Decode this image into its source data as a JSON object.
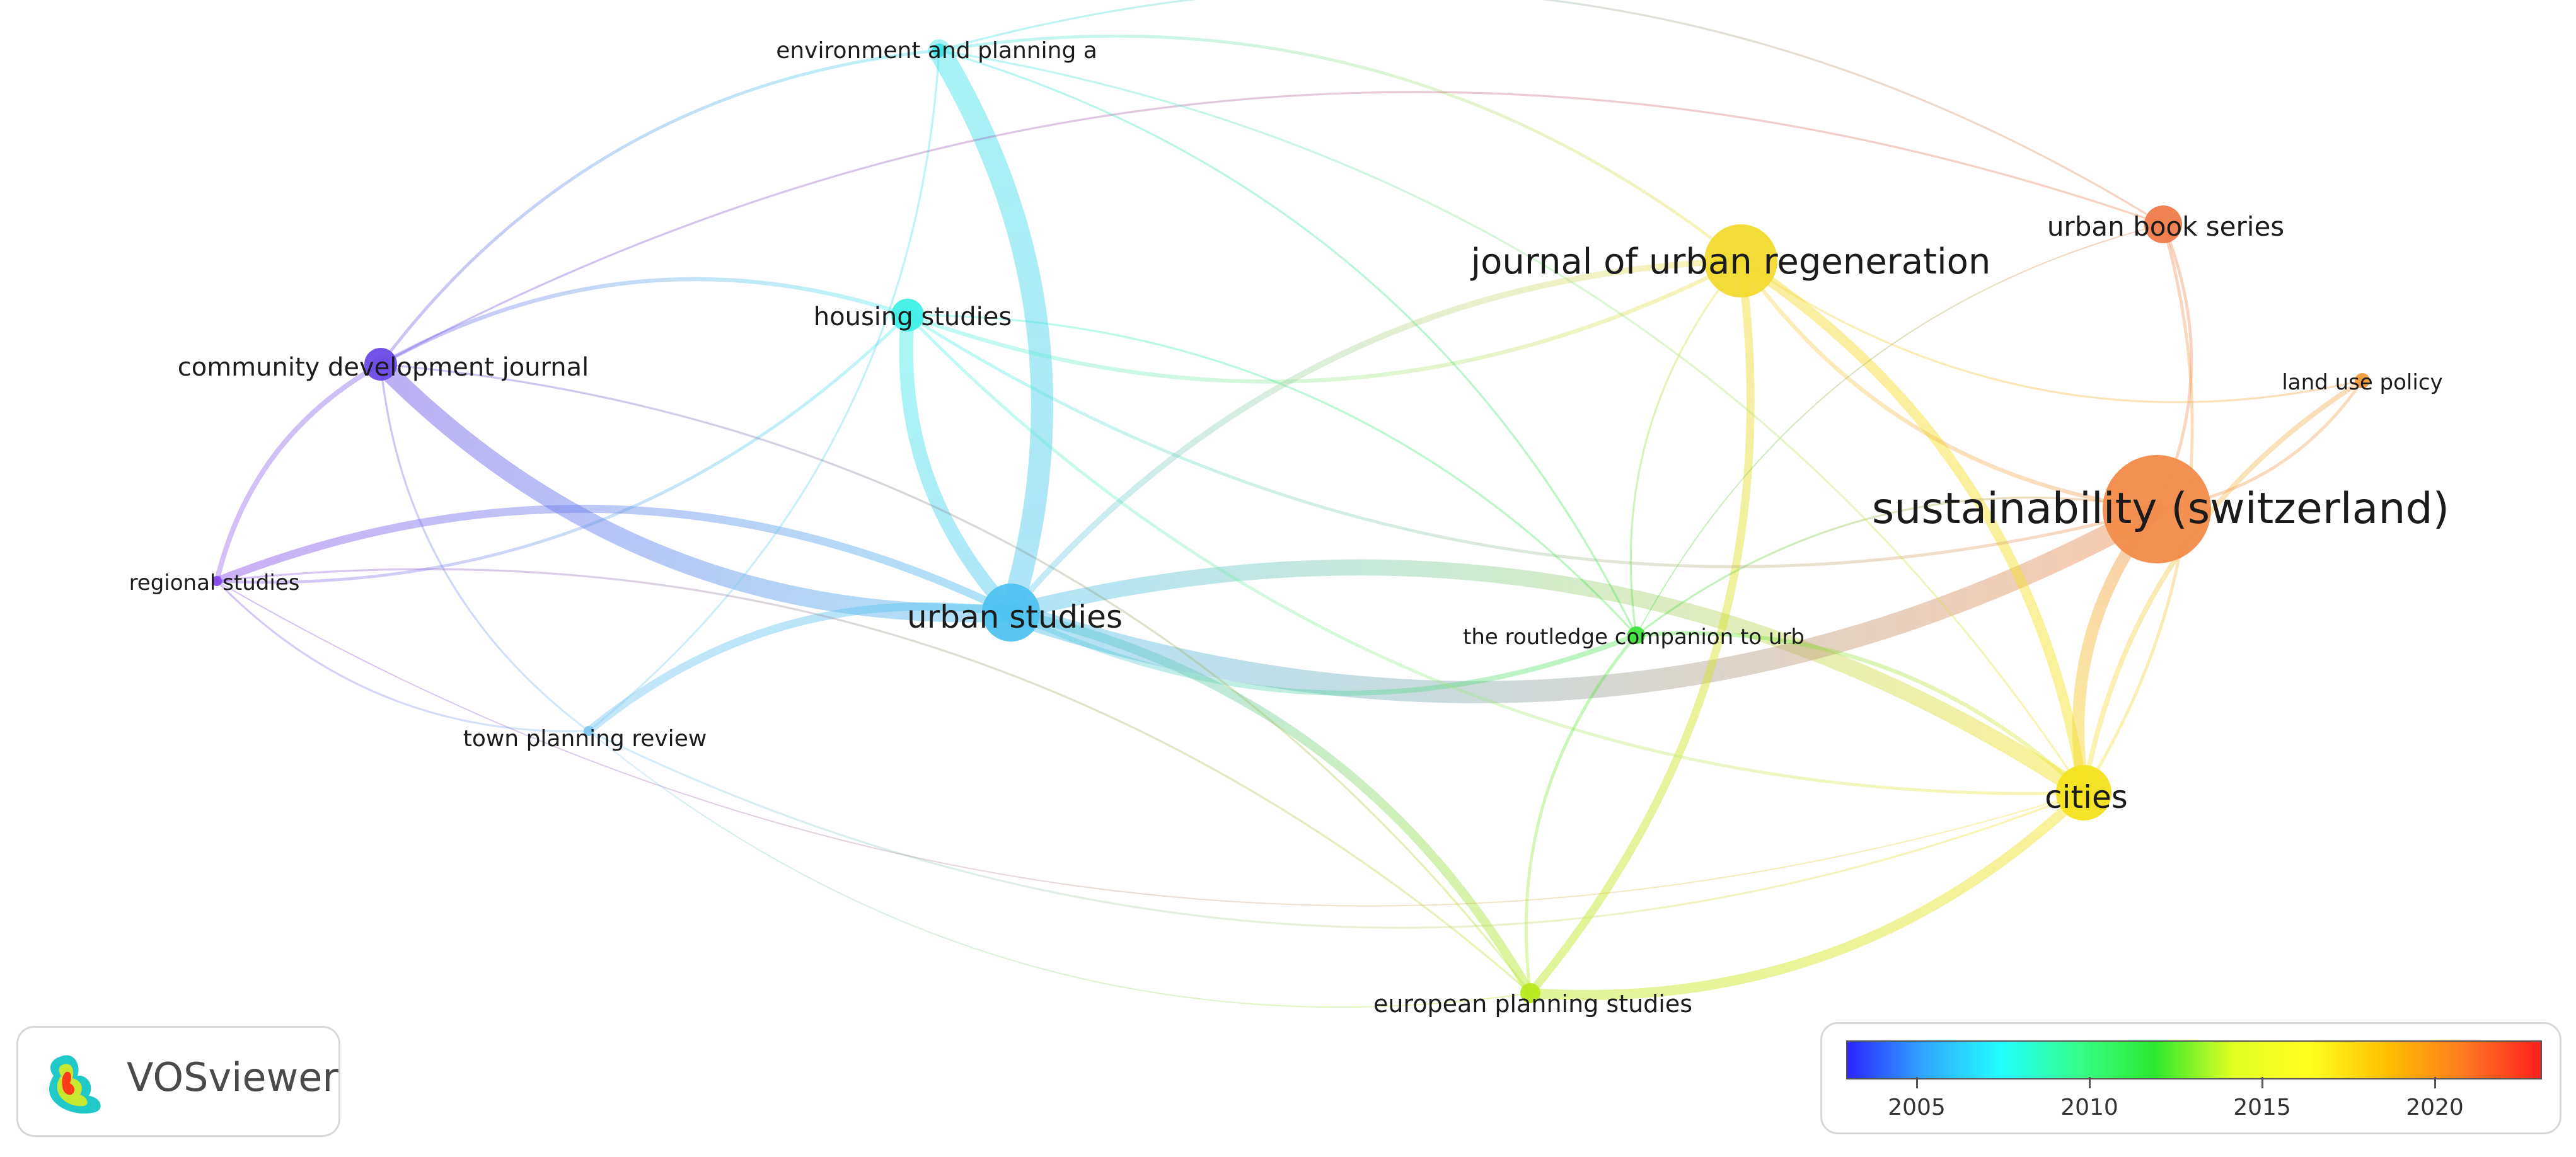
{
  "app": {
    "name": "VOSviewer"
  },
  "nodes": [
    {
      "id": "sustainability",
      "label": "sustainability (switzerland)",
      "color": "#f28b4a"
    },
    {
      "id": "jur",
      "label": "journal of urban regeneration",
      "color": "#f2da2e"
    },
    {
      "id": "urban_studies",
      "label": "urban studies",
      "color": "#4fc3f0"
    },
    {
      "id": "cities",
      "label": "cities",
      "color": "#f4e21e"
    },
    {
      "id": "housing",
      "label": "housing studies",
      "color": "#3ff0e8"
    },
    {
      "id": "cdj",
      "label": "community development journal",
      "color": "#6b4ae6"
    },
    {
      "id": "ubs",
      "label": "urban book series",
      "color": "#f07b4a"
    },
    {
      "id": "env",
      "label": "environment and planning a",
      "color": "#3ce3e8"
    },
    {
      "id": "lup",
      "label": "land use policy",
      "color": "#f29a3a"
    },
    {
      "id": "regional",
      "label": "regional studies",
      "color": "#8a4ce8"
    },
    {
      "id": "routledge",
      "label": "the routledge companion to urb",
      "color": "#3ee33e"
    },
    {
      "id": "tpr",
      "label": "town planning review",
      "color": "#7fc7f2"
    },
    {
      "id": "eps",
      "label": "european planning studies",
      "color": "#b8e81e"
    }
  ],
  "links": [
    [
      "cdj",
      "urban_studies",
      18
    ],
    [
      "urban_studies",
      "cities",
      16
    ],
    [
      "urban_studies",
      "sustainability",
      22
    ],
    [
      "env",
      "urban_studies",
      22
    ],
    [
      "housing",
      "urban_studies",
      14
    ],
    [
      "jur",
      "cities",
      10
    ],
    [
      "sustainability",
      "cities",
      12
    ],
    [
      "jur",
      "eps",
      8
    ],
    [
      "eps",
      "cities",
      10
    ],
    [
      "regional",
      "urban_studies",
      8
    ],
    [
      "cdj",
      "regional",
      5
    ],
    [
      "routledge",
      "cities",
      4
    ],
    [
      "urban_studies",
      "routledge",
      5
    ],
    [
      "tpr",
      "urban_studies",
      8
    ],
    [
      "housing",
      "jur",
      4
    ],
    [
      "cdj",
      "housing",
      4
    ],
    [
      "regional",
      "housing",
      3
    ],
    [
      "env",
      "jur",
      3
    ],
    [
      "env",
      "cdj",
      3
    ],
    [
      "ubs",
      "sustainability",
      3
    ],
    [
      "lup",
      "cities",
      5
    ],
    [
      "lup",
      "sustainability",
      3
    ],
    [
      "jur",
      "sustainability",
      4
    ],
    [
      "ubs",
      "cities",
      3
    ],
    [
      "housing",
      "cities",
      3
    ],
    [
      "urban_studies",
      "eps",
      9
    ],
    [
      "routledge",
      "eps",
      3
    ],
    [
      "routledge",
      "sustainability",
      2
    ],
    [
      "tpr",
      "env",
      2
    ],
    [
      "tpr",
      "cdj",
      2
    ],
    [
      "regional",
      "tpr",
      2
    ],
    [
      "env",
      "ubs",
      2
    ],
    [
      "jur",
      "lup",
      2
    ],
    [
      "cdj",
      "ubs",
      2
    ],
    [
      "housing",
      "sustainability",
      3
    ],
    [
      "regional",
      "eps",
      2
    ],
    [
      "tpr",
      "cities",
      2
    ],
    [
      "env",
      "routledge",
      2
    ],
    [
      "jur",
      "routledge",
      2
    ],
    [
      "housing",
      "routledge",
      2
    ],
    [
      "regional",
      "cities",
      1
    ],
    [
      "cdj",
      "eps",
      2
    ],
    [
      "ubs",
      "routledge",
      1
    ],
    [
      "env",
      "cities",
      2
    ],
    [
      "tpr",
      "eps",
      1
    ],
    [
      "urban_studies",
      "jur",
      6
    ]
  ],
  "legend": {
    "colors": [
      "#2a25ff",
      "#30a8ff",
      "#22ffff",
      "#34ff8a",
      "#2ee82e",
      "#e0ff22",
      "#ffff20",
      "#ffc000",
      "#ff7a20",
      "#ff1f1f"
    ],
    "ticks": [
      "2005",
      "2010",
      "2015",
      "2020"
    ]
  }
}
